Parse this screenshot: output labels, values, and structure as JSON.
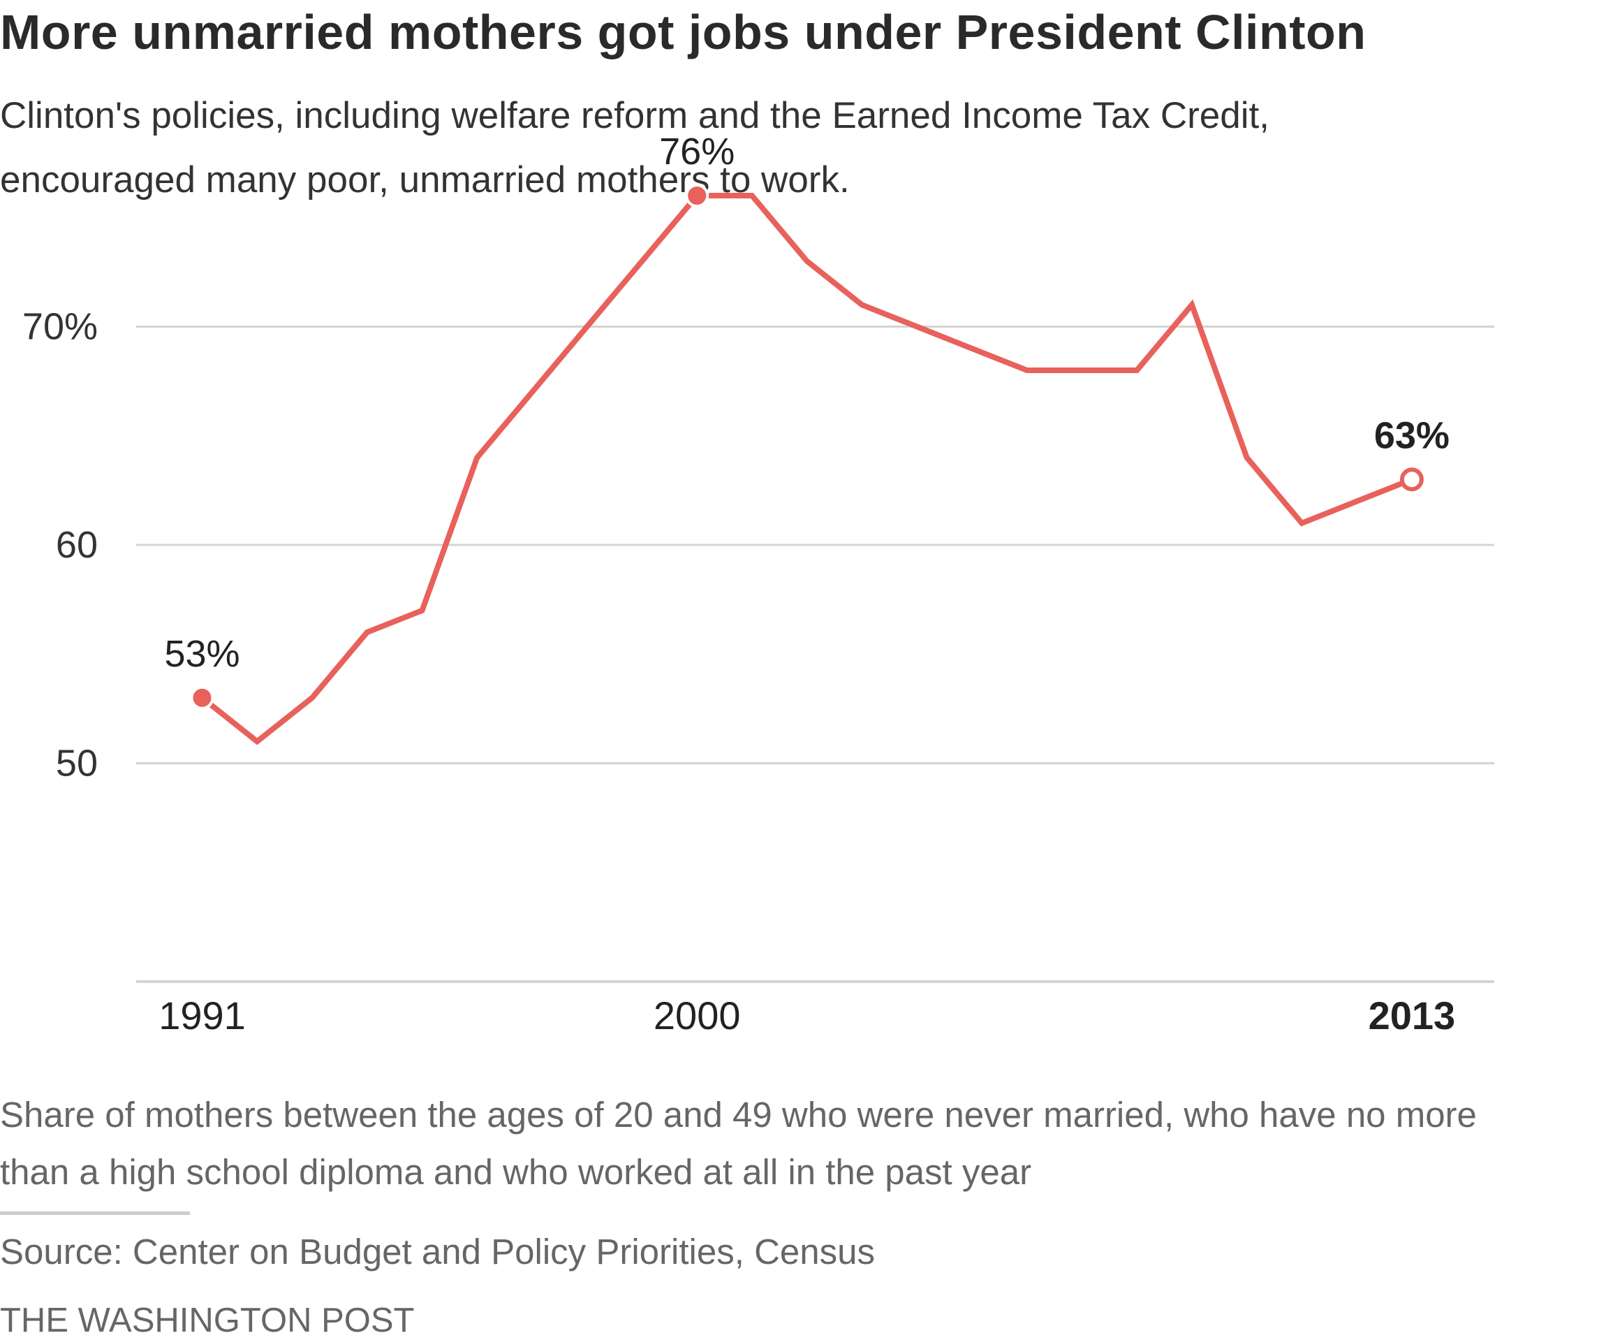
{
  "header": {
    "title": "More unmarried mothers got jobs under President Clinton",
    "subtitle_lines": [
      "Clinton's policies, including welfare reform and the Earned Income Tax Credit,",
      "encouraged many poor, unmarried mothers to work."
    ]
  },
  "footer": {
    "note_lines": [
      "Share of mothers between the ages of 20 and 49 who were never married, who have no more",
      "than a high school diploma and who worked at all in the past year"
    ],
    "source": "Source: Center on Budget and Policy Priorities, Census",
    "credit": "THE WASHINGTON POST"
  },
  "chart_data": {
    "type": "line",
    "title": "More unmarried mothers got jobs under President Clinton",
    "xlabel": "",
    "ylabel": "",
    "x": [
      1991,
      1992,
      1993,
      1994,
      1995,
      1996,
      1997,
      1998,
      1999,
      2000,
      2001,
      2002,
      2003,
      2004,
      2005,
      2006,
      2007,
      2008,
      2009,
      2010,
      2011,
      2012,
      2013
    ],
    "series": [
      {
        "values": [
          53,
          51,
          53,
          56,
          57,
          64,
          67,
          70,
          73,
          76,
          76,
          73,
          71,
          70,
          69,
          68,
          68,
          68,
          71,
          64,
          61,
          62,
          63
        ],
        "color": "#e8615b"
      }
    ],
    "xlim": [
      1989.8,
      2014.5
    ],
    "ylim": [
      40,
      80
    ],
    "y_ticks": [
      {
        "value": 50,
        "label": "50"
      },
      {
        "value": 60,
        "label": "60"
      },
      {
        "value": 70,
        "label": "70%"
      }
    ],
    "x_ticks": [
      {
        "value": 1991,
        "label": "1991",
        "bold": false
      },
      {
        "value": 2000,
        "label": "2000",
        "bold": false
      },
      {
        "value": 2013,
        "label": "2013",
        "bold": true
      }
    ],
    "annotations": [
      {
        "x": 1991,
        "y": 53,
        "label": "53%",
        "marker": "filled",
        "bold": false
      },
      {
        "x": 2000,
        "y": 76,
        "label": "76%",
        "marker": "filled",
        "bold": false
      },
      {
        "x": 2013,
        "y": 63,
        "label": "63%",
        "marker": "hollow",
        "bold": true
      }
    ],
    "grid": true,
    "legend": "none",
    "colors": {
      "line": "#e8615b",
      "grid": "#d4d4d4",
      "text": "#333333"
    }
  }
}
